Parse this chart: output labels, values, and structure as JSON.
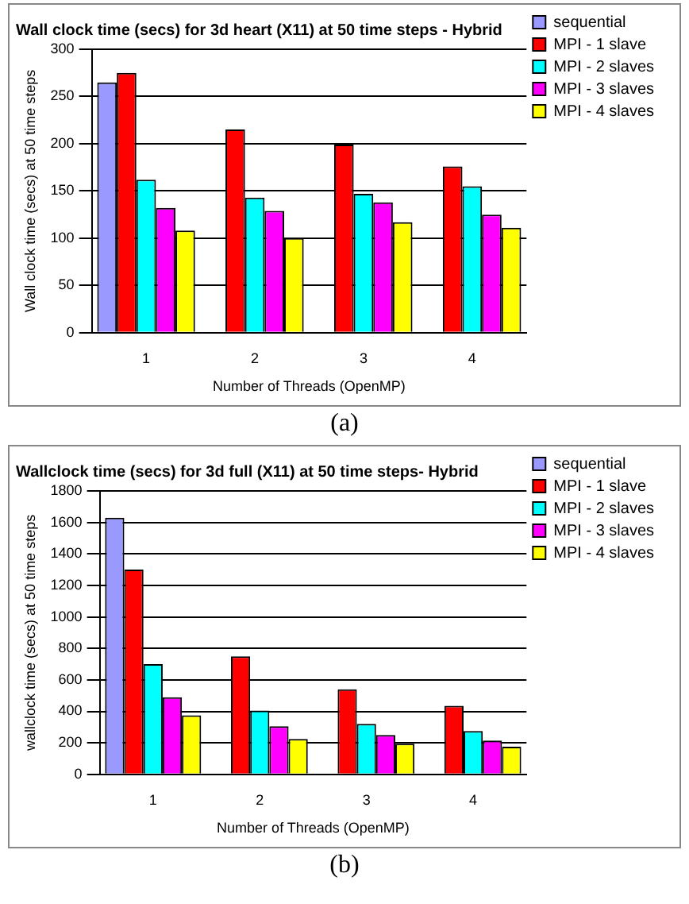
{
  "chart_data": [
    {
      "type": "bar",
      "title": "Wall clock time (secs) for 3d heart (X11) at 50 time steps - Hybrid",
      "xlabel": "Number of Threads (OpenMP)",
      "ylabel": "Wall clock time (secs) at 50 time steps",
      "categories": [
        "1",
        "2",
        "3",
        "4"
      ],
      "series": [
        {
          "name": "sequential",
          "color": "#9999ff",
          "values": [
            265,
            null,
            null,
            null
          ]
        },
        {
          "name": "MPI - 1 slave",
          "color": "#ff0000",
          "values": [
            275,
            215,
            199,
            176
          ]
        },
        {
          "name": "MPI - 2 slaves",
          "color": "#00ffff",
          "values": [
            162,
            143,
            147,
            155
          ]
        },
        {
          "name": "MPI - 3 slaves",
          "color": "#ff00ff",
          "values": [
            132,
            129,
            138,
            125
          ]
        },
        {
          "name": "MPI - 4 slaves",
          "color": "#ffff00",
          "values": [
            108,
            100,
            117,
            111
          ]
        }
      ],
      "ylim": [
        0,
        300
      ],
      "yticks": [
        0,
        50,
        100,
        150,
        200,
        250,
        300
      ],
      "grid": "y",
      "legend": "top right",
      "annotations": [
        "(a)"
      ]
    },
    {
      "type": "bar",
      "title": "Wallclock time (secs) for 3d full (X11) at 50 time steps- Hybrid",
      "xlabel": "Number of Threads (OpenMP)",
      "ylabel": "wallclock time (secs) at 50 time steps",
      "categories": [
        "1",
        "2",
        "3",
        "4"
      ],
      "series": [
        {
          "name": "sequential",
          "color": "#9999ff",
          "values": [
            1630,
            null,
            null,
            null
          ]
        },
        {
          "name": "MPI - 1 slave",
          "color": "#ff0000",
          "values": [
            1300,
            750,
            540,
            435
          ]
        },
        {
          "name": "MPI - 2 slaves",
          "color": "#00ffff",
          "values": [
            700,
            405,
            320,
            275
          ]
        },
        {
          "name": "MPI - 3 slaves",
          "color": "#ff00ff",
          "values": [
            490,
            305,
            250,
            215
          ]
        },
        {
          "name": "MPI - 4 slaves",
          "color": "#ffff00",
          "values": [
            375,
            225,
            195,
            175
          ]
        }
      ],
      "ylim": [
        0,
        1800
      ],
      "yticks": [
        0,
        200,
        400,
        600,
        800,
        1000,
        1200,
        1400,
        1600,
        1800
      ],
      "grid": "y",
      "legend": "top right",
      "annotations": [
        "(b)"
      ]
    }
  ]
}
